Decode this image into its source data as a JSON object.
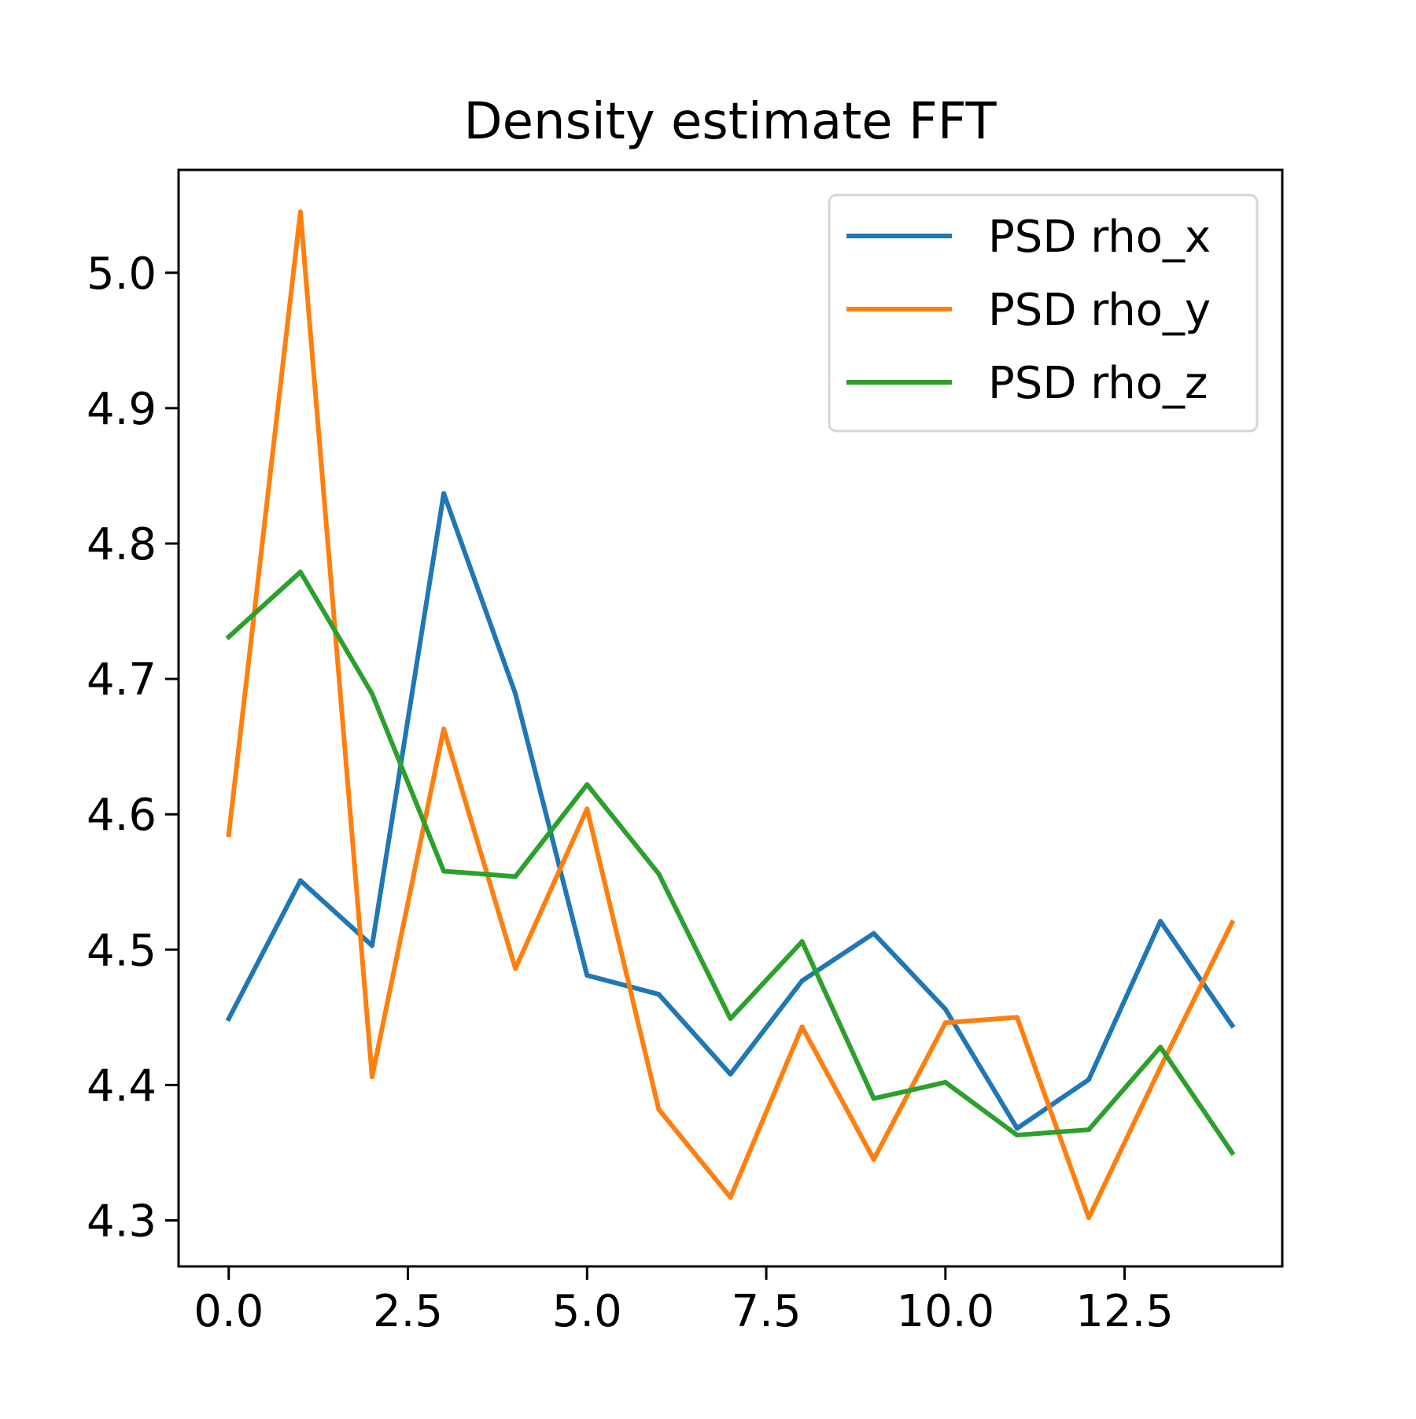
{
  "chart_data": {
    "type": "line",
    "title": "Density estimate FFT",
    "xlabel": "",
    "ylabel": "",
    "x": [
      0,
      1,
      2,
      3,
      4,
      5,
      6,
      7,
      8,
      9,
      10,
      11,
      12,
      13,
      14
    ],
    "xlim": [
      -0.7,
      14.7
    ],
    "ylim": [
      4.266,
      5.076
    ],
    "xticks": [
      0.0,
      2.5,
      5.0,
      7.5,
      10.0,
      12.5
    ],
    "xtick_labels": [
      "0.0",
      "2.5",
      "5.0",
      "7.5",
      "10.0",
      "12.5"
    ],
    "yticks": [
      4.3,
      4.4,
      4.5,
      4.6,
      4.7,
      4.8,
      4.9,
      5.0
    ],
    "ytick_labels": [
      "4.3",
      "4.4",
      "4.5",
      "4.6",
      "4.7",
      "4.8",
      "4.9",
      "5.0"
    ],
    "grid": false,
    "legend_position": "top-right",
    "series": [
      {
        "name": "PSD rho_x",
        "color": "#1f77b4",
        "values": [
          4.449,
          4.551,
          4.503,
          4.837,
          4.689,
          4.481,
          4.467,
          4.408,
          4.477,
          4.512,
          4.456,
          4.368,
          4.404,
          4.521,
          4.444
        ]
      },
      {
        "name": "PSD rho_y",
        "color": "#ff7f0e",
        "values": [
          4.585,
          5.045,
          4.406,
          4.663,
          4.486,
          4.604,
          4.382,
          4.317,
          4.443,
          4.345,
          4.446,
          4.45,
          4.302,
          4.413,
          4.52
        ]
      },
      {
        "name": "PSD rho_z",
        "color": "#2ca02c",
        "values": [
          4.731,
          4.779,
          4.689,
          4.558,
          4.554,
          4.622,
          4.556,
          4.449,
          4.506,
          4.39,
          4.402,
          4.363,
          4.367,
          4.428,
          4.35
        ]
      }
    ]
  }
}
